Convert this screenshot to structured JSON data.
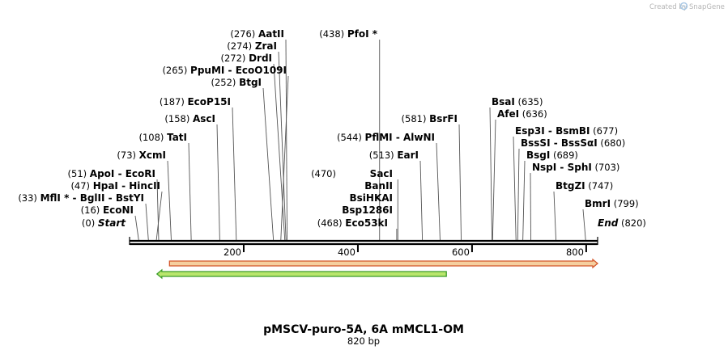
{
  "branding": {
    "created_by": "Created by",
    "app_name": "SnapGene",
    "logo_icon": "snapgene-logo-icon"
  },
  "plasmid": {
    "name": "pMSCV-puro-5A, 6A mMCL1-OM",
    "length_label": "820 bp",
    "length": 820
  },
  "axis": {
    "ticks": [
      200,
      400,
      600,
      800
    ]
  },
  "features": [
    {
      "name": "orange-feature",
      "start": 70,
      "end": 820,
      "direction": "forward",
      "fill": "#f5cf9f",
      "stroke": "#d4572b"
    },
    {
      "name": "green-feature",
      "start": 48,
      "end": 555,
      "direction": "reverse",
      "fill": "#b9e66c",
      "stroke": "#3c9c2a"
    }
  ],
  "sites": [
    {
      "pos": 276,
      "label_pos": "(276)",
      "names": [
        "AatII"
      ],
      "star": [
        false
      ],
      "pos_side": "left"
    },
    {
      "pos": 274,
      "label_pos": "(274)",
      "names": [
        "ZraI"
      ],
      "star": [
        false
      ],
      "pos_side": "left"
    },
    {
      "pos": 272,
      "label_pos": "(272)",
      "names": [
        "DrdI"
      ],
      "star": [
        false
      ],
      "pos_side": "left"
    },
    {
      "pos": 265,
      "label_pos": "(265)",
      "names": [
        "PpuMI",
        "EcoO109I"
      ],
      "star": [
        false,
        false
      ],
      "pos_side": "left"
    },
    {
      "pos": 252,
      "label_pos": "(252)",
      "names": [
        "BtgI"
      ],
      "star": [
        false
      ],
      "pos_side": "left"
    },
    {
      "pos": 187,
      "label_pos": "(187)",
      "names": [
        "EcoP15I"
      ],
      "star": [
        false
      ],
      "pos_side": "left"
    },
    {
      "pos": 158,
      "label_pos": "(158)",
      "names": [
        "AscI"
      ],
      "star": [
        false
      ],
      "pos_side": "left"
    },
    {
      "pos": 108,
      "label_pos": "(108)",
      "names": [
        "TatI"
      ],
      "star": [
        false
      ],
      "pos_side": "left"
    },
    {
      "pos": 73,
      "label_pos": "(73)",
      "names": [
        "XcmI"
      ],
      "star": [
        false
      ],
      "pos_side": "left"
    },
    {
      "pos": 51,
      "label_pos": "(51)",
      "names": [
        "ApoI",
        "EcoRI"
      ],
      "star": [
        false,
        false
      ],
      "pos_side": "left"
    },
    {
      "pos": 47,
      "label_pos": "(47)",
      "names": [
        "HpaI",
        "HincII"
      ],
      "star": [
        false,
        false
      ],
      "pos_side": "left"
    },
    {
      "pos": 33,
      "label_pos": "(33)",
      "names": [
        "MflI",
        "BglII",
        "BstYI"
      ],
      "star": [
        true,
        false,
        false
      ],
      "pos_side": "left"
    },
    {
      "pos": 16,
      "label_pos": "(16)",
      "names": [
        "EcoNI"
      ],
      "star": [
        false
      ],
      "pos_side": "left"
    },
    {
      "pos": 0,
      "label_pos": "(0)",
      "names": [
        "Start"
      ],
      "star": [
        false
      ],
      "pos_side": "left",
      "italic": true
    },
    {
      "pos": 438,
      "label_pos": "(438)",
      "names": [
        "PfoI"
      ],
      "star": [
        true
      ],
      "pos_side": "left"
    },
    {
      "pos": 581,
      "label_pos": "(581)",
      "names": [
        "BsrFI"
      ],
      "star": [
        false
      ],
      "pos_side": "left"
    },
    {
      "pos": 544,
      "label_pos": "(544)",
      "names": [
        "PflMI",
        "AlwNI"
      ],
      "star": [
        false,
        false
      ],
      "pos_side": "left"
    },
    {
      "pos": 513,
      "label_pos": "(513)",
      "names": [
        "EarI"
      ],
      "star": [
        false
      ],
      "pos_side": "left"
    },
    {
      "pos": 470,
      "label_pos": "(470)",
      "names": [
        "SacI",
        "BanII",
        "BsiHKAI",
        "Bsp1286I"
      ],
      "star": [
        false,
        false,
        false,
        false
      ],
      "pos_side": "left",
      "stacked": true
    },
    {
      "pos": 468,
      "label_pos": "(468)",
      "names": [
        "Eco53kI"
      ],
      "star": [
        false
      ],
      "pos_side": "left"
    },
    {
      "pos": 635,
      "label_pos": "(635)",
      "names": [
        "BsaI"
      ],
      "star": [
        false
      ],
      "pos_side": "right"
    },
    {
      "pos": 636,
      "label_pos": "(636)",
      "names": [
        "AfeI"
      ],
      "star": [
        false
      ],
      "pos_side": "right"
    },
    {
      "pos": 677,
      "label_pos": "(677)",
      "names": [
        "Esp3I",
        "BsmBI"
      ],
      "star": [
        false,
        false
      ],
      "pos_side": "right"
    },
    {
      "pos": 680,
      "label_pos": "(680)",
      "names": [
        "BssSI",
        "BssSαI"
      ],
      "star": [
        false,
        false
      ],
      "pos_side": "right"
    },
    {
      "pos": 689,
      "label_pos": "(689)",
      "names": [
        "BsgI"
      ],
      "star": [
        false
      ],
      "pos_side": "right"
    },
    {
      "pos": 703,
      "label_pos": "(703)",
      "names": [
        "NspI",
        "SphI"
      ],
      "star": [
        false,
        false
      ],
      "pos_side": "right"
    },
    {
      "pos": 747,
      "label_pos": "(747)",
      "names": [
        "BtgZI"
      ],
      "star": [
        false
      ],
      "pos_side": "right"
    },
    {
      "pos": 799,
      "label_pos": "(799)",
      "names": [
        "BmrI"
      ],
      "star": [
        false
      ],
      "pos_side": "right"
    },
    {
      "pos": 820,
      "label_pos": "(820)",
      "names": [
        "End"
      ],
      "star": [
        false
      ],
      "pos_side": "right",
      "italic": true
    }
  ]
}
